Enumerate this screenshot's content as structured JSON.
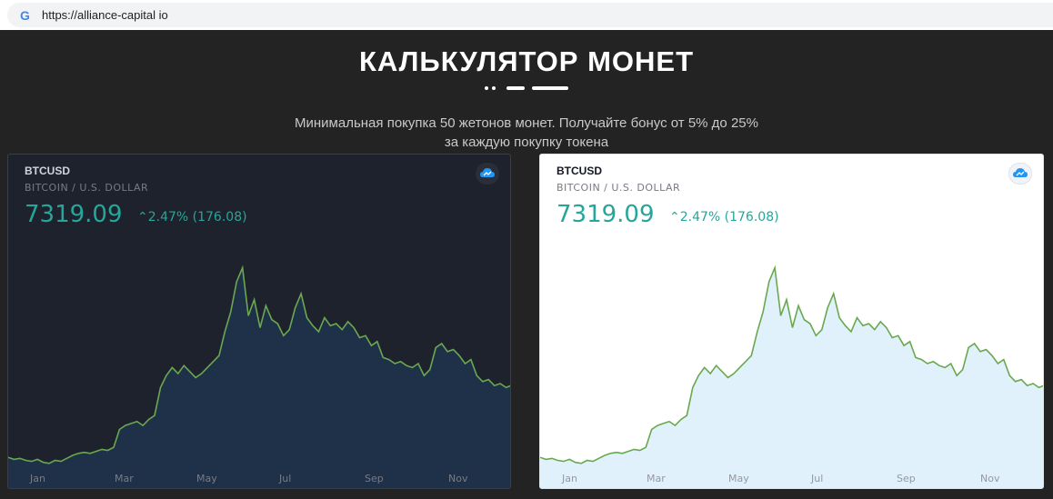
{
  "browser": {
    "icon": "google-g-icon",
    "url": "https://alliance-capital io"
  },
  "page": {
    "title": "КАЛЬКУЛЯТОР МОНЕТ",
    "subtitle_line1": "Минимальная покупка 50 жетонов монет. Получайте бонус от 5% до 25%",
    "subtitle_line2": "за каждую покупку токена"
  },
  "widgets": [
    {
      "theme": "dark",
      "symbol": "BTCUSD",
      "description": "BITCOIN / U.S. DOLLAR",
      "price": "7319.09",
      "change": "⌃2.47% (176.08)"
    },
    {
      "theme": "light",
      "symbol": "BTCUSD",
      "description": "BITCOIN / U.S. DOLLAR",
      "price": "7319.09",
      "change": "⌃2.47% (176.08)"
    }
  ],
  "chart_data": {
    "type": "area",
    "x_tick_labels": [
      "Jan",
      "Mar",
      "May",
      "Jul",
      "Sep",
      "Nov"
    ],
    "series": [
      {
        "values": [
          3700,
          3600,
          3650,
          3550,
          3500,
          3600,
          3450,
          3400,
          3550,
          3500,
          3650,
          3800,
          3900,
          3950,
          3900,
          4000,
          4100,
          4050,
          4200,
          5100,
          5300,
          5400,
          5500,
          5300,
          5600,
          5800,
          7200,
          7800,
          8200,
          7900,
          8300,
          8000,
          7700,
          7900,
          8200,
          8500,
          8800,
          10000,
          11000,
          12500,
          13200,
          10800,
          11600,
          10200,
          11300,
          10600,
          10400,
          9800,
          10100,
          11200,
          11900,
          10700,
          10300,
          10000,
          10700,
          10300,
          10400,
          10100,
          10500,
          10200,
          9700,
          9800,
          9300,
          9500,
          8700,
          8600,
          8400,
          8500,
          8300,
          8200,
          8400,
          7800,
          8100,
          9200,
          9400,
          9000,
          9100,
          8800,
          8400,
          8600,
          7800,
          7500,
          7600,
          7300,
          7400,
          7200,
          7319
        ]
      }
    ],
    "colors": {
      "line": "#6aa84f",
      "dark_fill": "#1f3149",
      "light_fill": "#e1f1fb",
      "change": "#26a69a"
    }
  }
}
